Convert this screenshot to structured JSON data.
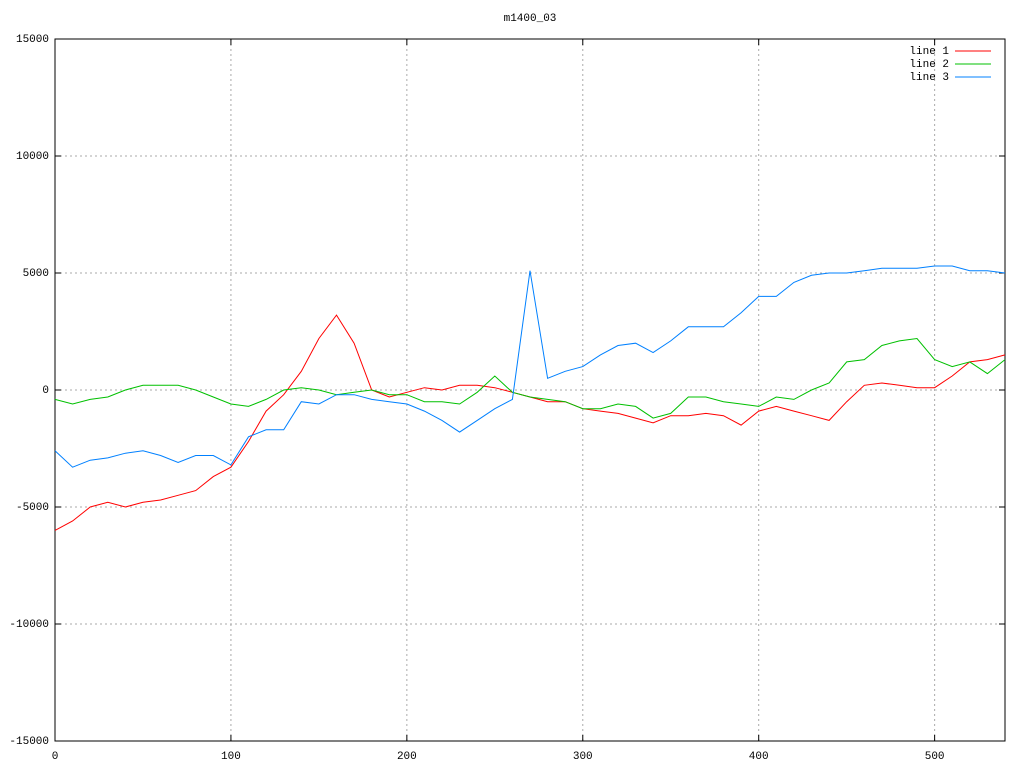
{
  "chart_data": {
    "type": "line",
    "title": "m1400_03",
    "x": [
      0,
      10,
      20,
      30,
      40,
      50,
      60,
      70,
      80,
      90,
      100,
      110,
      120,
      130,
      140,
      150,
      160,
      170,
      180,
      190,
      200,
      210,
      220,
      230,
      240,
      250,
      260,
      270,
      280,
      290,
      300,
      310,
      320,
      330,
      340,
      350,
      360,
      370,
      380,
      390,
      400,
      410,
      420,
      430,
      440,
      450,
      460,
      470,
      480,
      490,
      500,
      510,
      520,
      530,
      540
    ],
    "series": [
      {
        "name": "line 1",
        "color": "#ff0000",
        "values": [
          -6000,
          -5600,
          -5000,
          -4800,
          -5000,
          -4800,
          -4700,
          -4500,
          -4300,
          -3700,
          -3300,
          -2200,
          -900,
          -200,
          800,
          2200,
          3200,
          2000,
          0,
          -300,
          -100,
          100,
          0,
          200,
          200,
          100,
          -100,
          -300,
          -500,
          -500,
          -800,
          -900,
          -1000,
          -1200,
          -1400,
          -1100,
          -1100,
          -1000,
          -1100,
          -1500,
          -900,
          -700,
          -900,
          -1100,
          -1300,
          -500,
          200,
          300,
          200,
          100,
          100,
          600,
          1200,
          1300,
          1500
        ]
      },
      {
        "name": "line 2",
        "color": "#00c000",
        "values": [
          -400,
          -600,
          -400,
          -300,
          0,
          200,
          200,
          200,
          0,
          -300,
          -600,
          -700,
          -400,
          0,
          100,
          0,
          -200,
          -100,
          0,
          -200,
          -200,
          -500,
          -500,
          -600,
          -100,
          600,
          -100,
          -300,
          -400,
          -500,
          -800,
          -800,
          -600,
          -700,
          -1200,
          -1000,
          -300,
          -300,
          -500,
          -600,
          -700,
          -300,
          -400,
          0,
          300,
          1200,
          1300,
          1900,
          2100,
          2200,
          1300,
          1000,
          1200,
          700,
          1300
        ]
      },
      {
        "name": "line 3",
        "color": "#0080ff",
        "values": [
          -2600,
          -3300,
          -3000,
          -2900,
          -2700,
          -2600,
          -2800,
          -3100,
          -2800,
          -2800,
          -3200,
          -2000,
          -1700,
          -1700,
          -500,
          -600,
          -200,
          -200,
          -400,
          -500,
          -600,
          -900,
          -1300,
          -1800,
          -1300,
          -800,
          -400,
          5100,
          500,
          800,
          1000,
          1500,
          1900,
          2000,
          1600,
          2100,
          2700,
          2700,
          2700,
          3300,
          4000,
          4000,
          4600,
          4900,
          5000,
          5000,
          5100,
          5200,
          5200,
          5200,
          5300,
          5300,
          5100,
          5100,
          5000
        ]
      }
    ],
    "xlim": [
      0,
      540
    ],
    "xticks": [
      0,
      100,
      200,
      300,
      400,
      500
    ],
    "ylim": [
      -15000,
      15000
    ],
    "yticks": [
      -15000,
      -10000,
      -5000,
      0,
      5000,
      10000,
      15000
    ],
    "grid": true,
    "legend": "top-right"
  }
}
